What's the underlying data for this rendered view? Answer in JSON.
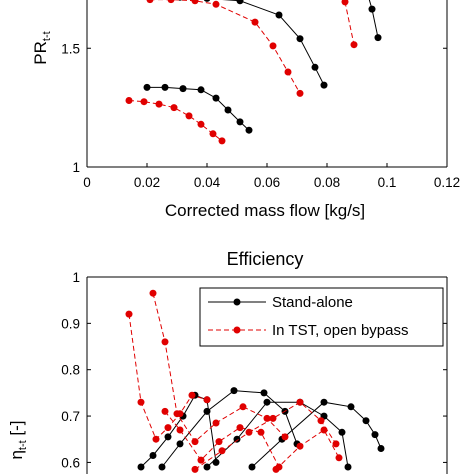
{
  "chart_data": [
    {
      "type": "line",
      "title": "",
      "ylabel": "PR",
      "ylabel_subscript": "t-t",
      "xlabel": "Corrected mass flow [kg/s]",
      "xlim": [
        0,
        0.12
      ],
      "ylim": [
        1,
        1.72
      ],
      "xticks": [
        "0",
        "0.02",
        "0.04",
        "0.06",
        "0.08",
        "0.1",
        "0.12"
      ],
      "yticks": [
        "1",
        "1.5"
      ],
      "series": [
        {
          "name": "Stand-alone",
          "color": "#000000",
          "lines": [
            {
              "x": [
                0.02,
                0.026,
                0.032,
                0.038,
                0.043,
                0.047,
                0.051,
                0.054
              ],
              "y": [
                1.335,
                1.335,
                1.33,
                1.325,
                1.29,
                1.24,
                1.19,
                1.155
              ]
            },
            {
              "x": [
                0.031,
                0.04,
                0.051,
                0.064,
                0.071,
                0.076,
                0.079
              ],
              "y": [
                1.715,
                1.71,
                1.7,
                1.64,
                1.54,
                1.42,
                1.345
              ]
            },
            {
              "x": [
                0.091,
                0.095,
                0.097
              ],
              "y": [
                1.84,
                1.665,
                1.545
              ]
            }
          ]
        },
        {
          "name": "In TST, open bypass",
          "color": "#e00000",
          "lines": [
            {
              "x": [
                0.014,
                0.019,
                0.024,
                0.029,
                0.034,
                0.038,
                0.042,
                0.045
              ],
              "y": [
                1.28,
                1.275,
                1.265,
                1.25,
                1.215,
                1.18,
                1.14,
                1.11
              ]
            },
            {
              "x": [
                0.021,
                0.028,
                0.036,
                0.043,
                0.056,
                0.062,
                0.067,
                0.071
              ],
              "y": [
                1.705,
                1.705,
                1.7,
                1.685,
                1.61,
                1.51,
                1.4,
                1.31
              ]
            },
            {
              "x": [
                0.083,
                0.086,
                0.089
              ],
              "y": [
                1.79,
                1.695,
                1.515
              ]
            }
          ]
        }
      ]
    },
    {
      "type": "line",
      "title": "Efficiency",
      "ylabel": "η",
      "ylabel_subscript": "t-t",
      "ylabel_suffix": " [-]",
      "xlim": [
        0,
        0.12
      ],
      "ylim": [
        0.575,
        1
      ],
      "yticks": [
        "0.6",
        "0.7",
        "0.8",
        "0.9",
        "1"
      ],
      "legend": {
        "position": "top-right",
        "entries": [
          "Stand-alone",
          "In TST, open bypass"
        ]
      },
      "series": [
        {
          "name": "Stand-alone",
          "color": "#000000",
          "lines": [
            {
              "x": [
                0.018,
                0.022,
                0.027,
                0.032,
                0.036,
                0.04,
                0.043
              ],
              "y": [
                0.59,
                0.615,
                0.655,
                0.7,
                0.745,
                0.735,
                0.6
              ]
            },
            {
              "x": [
                0.025,
                0.031,
                0.04,
                0.049,
                0.059,
                0.066,
                0.07
              ],
              "y": [
                0.59,
                0.64,
                0.71,
                0.755,
                0.75,
                0.71,
                0.64
              ]
            },
            {
              "x": [
                0.04,
                0.05,
                0.06,
                0.071,
                0.079,
                0.085,
                0.087
              ],
              "y": [
                0.59,
                0.65,
                0.73,
                0.73,
                0.7,
                0.665,
                0.59
              ]
            },
            {
              "x": [
                0.055,
                0.065,
                0.079,
                0.088,
                0.093,
                0.096,
                0.098
              ],
              "y": [
                0.59,
                0.65,
                0.73,
                0.72,
                0.69,
                0.66,
                0.63
              ]
            }
          ]
        },
        {
          "name": "In TST, open bypass",
          "color": "#e00000",
          "lines": [
            {
              "x": [
                0.014,
                0.018,
                0.023,
                0.027,
                0.031,
                0.035,
                0.04
              ],
              "y": [
                0.92,
                0.73,
                0.65,
                0.675,
                0.705,
                0.745,
                0.735
              ]
            },
            {
              "x": [
                0.022,
                0.026,
                0.03,
                0.036,
                0.043,
                0.052,
                0.06,
                0.066
              ],
              "y": [
                0.965,
                0.86,
                0.705,
                0.645,
                0.685,
                0.72,
                0.695,
                0.655
              ]
            },
            {
              "x": [
                0.026,
                0.031,
                0.038,
                0.044,
                0.051,
                0.058,
                0.064
              ],
              "y": [
                0.71,
                0.67,
                0.605,
                0.645,
                0.675,
                0.665,
                0.59
              ]
            },
            {
              "x": [
                0.036,
                0.045,
                0.054,
                0.062,
                0.071,
                0.078,
                0.083
              ],
              "y": [
                0.585,
                0.625,
                0.665,
                0.695,
                0.73,
                0.69,
                0.64
              ]
            },
            {
              "x": [
                0.063,
                0.071,
                0.079,
                0.084
              ],
              "y": [
                0.585,
                0.635,
                0.67,
                0.61
              ]
            }
          ]
        }
      ]
    }
  ]
}
